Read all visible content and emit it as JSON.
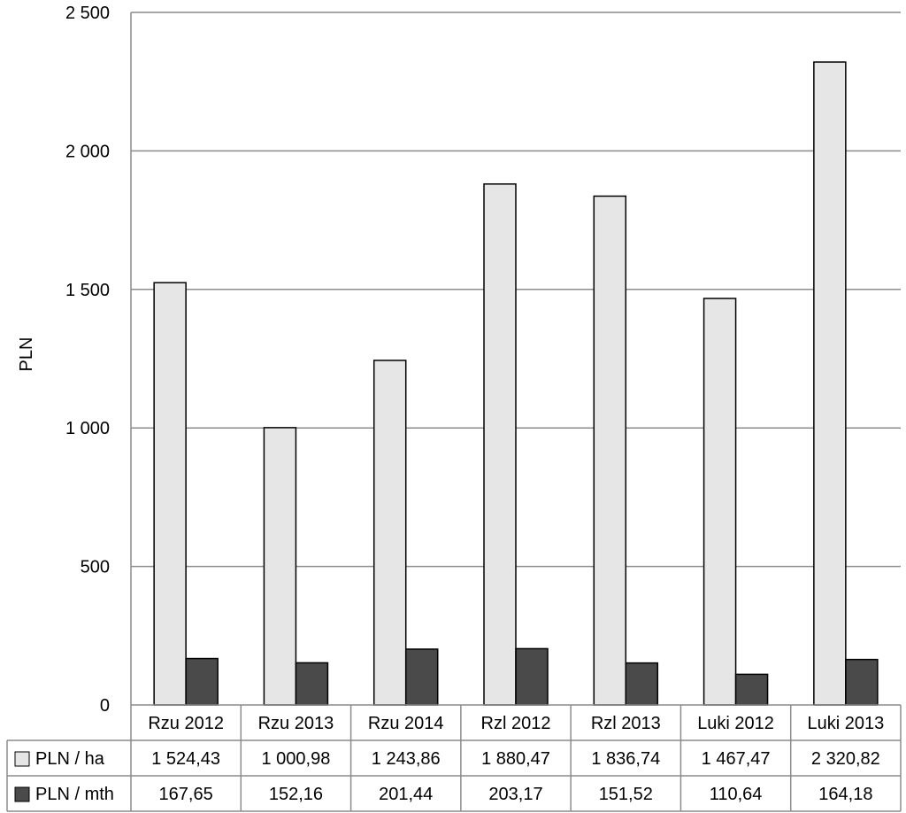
{
  "chart_data": {
    "type": "bar",
    "title": "",
    "xlabel": "",
    "ylabel": "PLN",
    "ylim": [
      0,
      2500
    ],
    "yticks": [
      0,
      500,
      1000,
      1500,
      2000,
      2500
    ],
    "ytick_labels": [
      "0",
      "500",
      "1 000",
      "1 500",
      "2 000",
      "2 500"
    ],
    "grid": true,
    "legend": "data-table",
    "categories": [
      "Rzu 2012",
      "Rzu 2013",
      "Rzu 2014",
      "Rzl 2012",
      "Rzl 2013",
      "Luki 2012",
      "Luki 2013"
    ],
    "series": [
      {
        "name": "PLN / ha",
        "color": "#e6e6e6",
        "values": [
          1524.43,
          1000.98,
          1243.86,
          1880.47,
          1836.74,
          1467.47,
          2320.82
        ],
        "labels": [
          "1 524,43",
          "1 000,98",
          "1 243,86",
          "1 880,47",
          "1 836,74",
          "1 467,47",
          "2 320,82"
        ]
      },
      {
        "name": "PLN / mth",
        "color": "#4a4a4a",
        "values": [
          167.65,
          152.16,
          201.44,
          203.17,
          151.52,
          110.64,
          164.18
        ],
        "labels": [
          "167,65",
          "152,16",
          "201,44",
          "203,17",
          "151,52",
          "110,64",
          "164,18"
        ]
      }
    ]
  }
}
